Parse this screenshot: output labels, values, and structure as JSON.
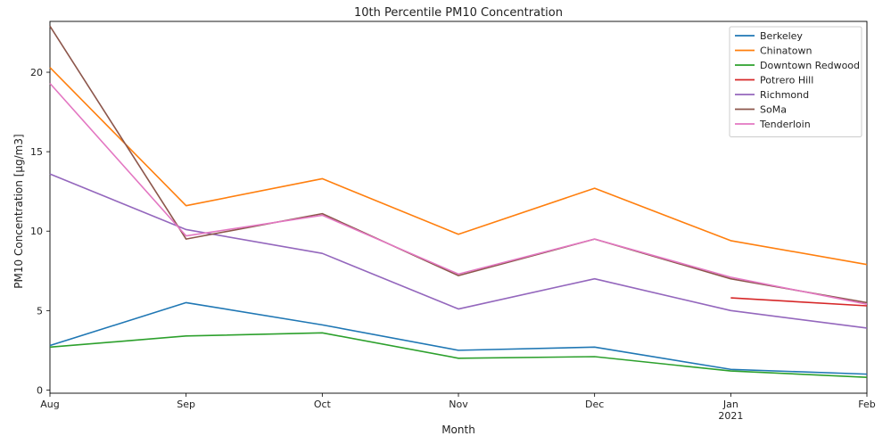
{
  "chart_data": {
    "type": "line",
    "title": "10th Percentile PM10 Concentration",
    "xlabel": "Month",
    "ylabel": "PM10 Concentration [µg/m3]",
    "categories": [
      "Aug",
      "Sep",
      "Oct",
      "Nov",
      "Dec",
      "Jan",
      "Feb"
    ],
    "year_label": "2021",
    "ylim": [
      -0.2,
      23.2
    ],
    "yticks": [
      0,
      5,
      10,
      15,
      20
    ],
    "grid": false,
    "legend_position": "top-right",
    "series": [
      {
        "name": "Berkeley",
        "color": "#1f77b4",
        "values": [
          2.8,
          5.5,
          4.1,
          2.5,
          2.7,
          1.3,
          1.0
        ]
      },
      {
        "name": "Chinatown",
        "color": "#ff7f0e",
        "values": [
          20.3,
          11.6,
          13.3,
          9.8,
          12.7,
          9.4,
          7.9
        ]
      },
      {
        "name": "Downtown Redwood",
        "color": "#2ca02c",
        "values": [
          2.7,
          3.4,
          3.6,
          2.0,
          2.1,
          1.2,
          0.8
        ]
      },
      {
        "name": "Potrero Hill",
        "color": "#d62728",
        "values": [
          null,
          null,
          null,
          null,
          null,
          5.8,
          5.3
        ]
      },
      {
        "name": "Richmond",
        "color": "#9467bd",
        "values": [
          13.6,
          10.1,
          8.6,
          5.1,
          7.0,
          5.0,
          3.9
        ]
      },
      {
        "name": "SoMa",
        "color": "#8c564b",
        "values": [
          22.9,
          9.5,
          11.1,
          7.2,
          9.5,
          7.0,
          5.5
        ]
      },
      {
        "name": "Tenderloin",
        "color": "#e377c2",
        "values": [
          19.3,
          9.7,
          11.0,
          7.3,
          9.5,
          7.1,
          5.4
        ]
      }
    ]
  }
}
